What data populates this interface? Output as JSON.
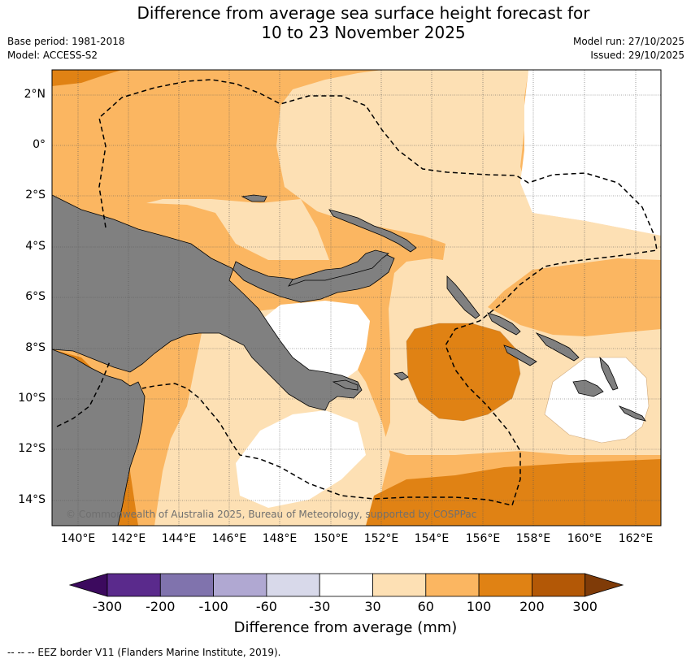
{
  "title_line1": "Difference from average sea surface height forecast for",
  "title_line2": "10 to 23 November 2025",
  "base_period": "Base period: 1981-2018",
  "model": "Model: ACCESS-S2",
  "model_run": "Model run: 27/10/2025",
  "issued": "Issued: 29/10/2025",
  "lat_labels": [
    "2°N",
    "0°",
    "2°S",
    "4°S",
    "6°S",
    "8°S",
    "10°S",
    "12°S",
    "14°S"
  ],
  "lon_labels": [
    "140°E",
    "142°E",
    "144°E",
    "146°E",
    "148°E",
    "150°E",
    "152°E",
    "154°E",
    "156°E",
    "158°E",
    "160°E",
    "162°E"
  ],
  "copyright": "© Commonwealth of Australia 2025, Bureau of Meteorology, supported by COSPPac",
  "colorbar": {
    "ticks": [
      "-300",
      "-200",
      "-100",
      "-60",
      "-30",
      "30",
      "60",
      "100",
      "200",
      "300"
    ],
    "colors": [
      "#3c0a5e",
      "#5a2a8c",
      "#8073ad",
      "#b0a8d2",
      "#d8d9ea",
      "#ffffff",
      "#fde0b4",
      "#fbb661",
      "#e08214",
      "#b35806",
      "#7f3b08"
    ],
    "title": "Difference from average (mm)"
  },
  "footer": "--  --  -- EEZ border V11 (Flanders Marine Institute, 2019)."
}
